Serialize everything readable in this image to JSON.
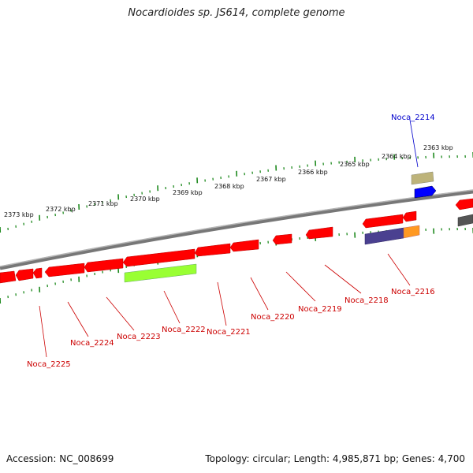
{
  "title": "Nocardioides sp. JS614, complete genome",
  "footer": {
    "accession": "Accession: NC_008699",
    "topology": "Topology: circular; Length: 4,985,871 bp; Genes: 4,700"
  },
  "colors": {
    "backbone": "#8a8a8a",
    "tick": "#1f8a1f",
    "gene_red": "#ff0000",
    "label_red": "#cc0000",
    "label_blue": "#0000cc"
  },
  "kbp_labels": [
    "2373 kbp",
    "2372 kbp",
    "2371 kbp",
    "2370 kbp",
    "2369 kbp",
    "2368 kbp",
    "2367 kbp",
    "2366 kbp",
    "2365 kbp",
    "2364 kbp",
    "2363 kbp"
  ],
  "gene_labels": [
    {
      "text": "Noca_2214",
      "color": "blue"
    },
    {
      "text": "Noca_2216",
      "color": "red"
    },
    {
      "text": "Noca_2218",
      "color": "red"
    },
    {
      "text": "Noca_2219",
      "color": "red"
    },
    {
      "text": "Noca_2220",
      "color": "red"
    },
    {
      "text": "Noca_2221",
      "color": "red"
    },
    {
      "text": "Noca_2222",
      "color": "red"
    },
    {
      "text": "Noca_2223",
      "color": "red"
    },
    {
      "text": "Noca_2224",
      "color": "red"
    },
    {
      "text": "Noca_2225",
      "color": "red"
    }
  ]
}
